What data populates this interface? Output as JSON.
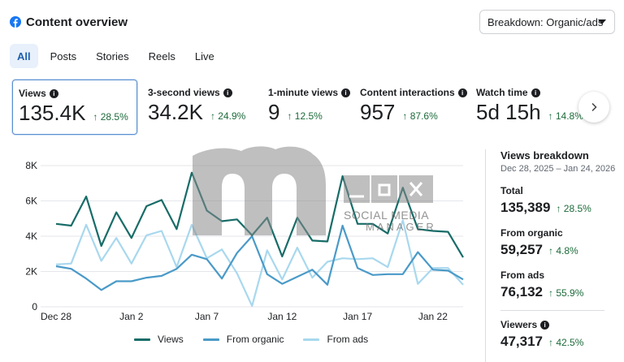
{
  "header": {
    "title": "Content overview",
    "icon": "facebook-icon",
    "brand_color": "#1877f2"
  },
  "breakdown": {
    "label": "Breakdown: Organic/ads"
  },
  "tabs": [
    {
      "label": "All",
      "active": true
    },
    {
      "label": "Posts",
      "active": false
    },
    {
      "label": "Stories",
      "active": false
    },
    {
      "label": "Reels",
      "active": false
    },
    {
      "label": "Live",
      "active": false
    }
  ],
  "metrics": [
    {
      "label": "Views",
      "value": "135.4K",
      "change": "↑ 28.5%"
    },
    {
      "label": "3-second views",
      "value": "34.2K",
      "change": "↑ 24.9%"
    },
    {
      "label": "1-minute views",
      "value": "9",
      "change": "↑ 12.5%"
    },
    {
      "label": "Content interactions",
      "value": "957",
      "change": "↑ 87.6%"
    },
    {
      "label": "Watch time",
      "value": "5d 15h",
      "change": "↑ 14.8%"
    }
  ],
  "legend": [
    {
      "label": "Views",
      "color": "#176c68"
    },
    {
      "label": "From organic",
      "color": "#4a9ac8"
    },
    {
      "label": "From ads",
      "color": "#a8d8ee"
    }
  ],
  "sidebar": {
    "title": "Views breakdown",
    "date_range": "Dec 28, 2025 – Jan 24, 2026",
    "stats": [
      {
        "label": "Total",
        "value": "135,389",
        "change": "↑ 28.5%"
      },
      {
        "label": "From organic",
        "value": "59,257",
        "change": "↑ 4.8%"
      },
      {
        "label": "From ads",
        "value": "76,132",
        "change": "↑ 55.9%"
      }
    ],
    "viewers": {
      "label": "Viewers",
      "value": "47,317",
      "change": "↑ 42.5%"
    }
  },
  "watermark": {
    "line1": "SOCIAL MEDIA",
    "line2": "MANAGER"
  },
  "chart_data": {
    "type": "line",
    "title": "",
    "xlabel": "",
    "ylabel": "",
    "ylim": [
      0,
      8000
    ],
    "yticks": [
      0,
      2000,
      4000,
      6000,
      8000
    ],
    "ytick_labels": [
      "0",
      "2K",
      "4K",
      "6K",
      "8K"
    ],
    "xtick_labels": [
      "Dec 28",
      "Jan 2",
      "Jan 7",
      "Jan 12",
      "Jan 17",
      "Jan 22"
    ],
    "xtick_index": [
      0,
      5,
      10,
      15,
      20,
      25
    ],
    "x": [
      "Dec 28",
      "Dec 29",
      "Dec 30",
      "Dec 31",
      "Jan 1",
      "Jan 2",
      "Jan 3",
      "Jan 4",
      "Jan 5",
      "Jan 6",
      "Jan 7",
      "Jan 8",
      "Jan 9",
      "Jan 10",
      "Jan 11",
      "Jan 12",
      "Jan 13",
      "Jan 14",
      "Jan 15",
      "Jan 16",
      "Jan 17",
      "Jan 18",
      "Jan 19",
      "Jan 20",
      "Jan 21",
      "Jan 22",
      "Jan 23",
      "Jan 24"
    ],
    "series": [
      {
        "name": "Views",
        "values": [
          4700,
          4600,
          6250,
          3450,
          5350,
          3900,
          5700,
          6050,
          4400,
          7600,
          5450,
          4850,
          4950,
          4050,
          5050,
          2850,
          5050,
          3750,
          3700,
          7400,
          4700,
          4700,
          4150,
          6750,
          4400,
          4300,
          4250,
          2800
        ]
      },
      {
        "name": "From organic",
        "values": [
          2300,
          2150,
          1600,
          950,
          1450,
          1450,
          1650,
          1750,
          2150,
          2950,
          2700,
          1600,
          3050,
          4000,
          1850,
          1300,
          1700,
          2100,
          1250,
          4600,
          2200,
          1800,
          1850,
          1850,
          3100,
          2100,
          2050,
          1550
        ]
      },
      {
        "name": "From ads",
        "values": [
          2400,
          2450,
          4650,
          2600,
          3900,
          2450,
          4050,
          4300,
          2250,
          4650,
          2750,
          3250,
          1900,
          50,
          3200,
          1550,
          3350,
          1650,
          2550,
          2750,
          2700,
          2750,
          2250,
          4900,
          1300,
          2200,
          2200,
          1250
        ]
      }
    ]
  }
}
